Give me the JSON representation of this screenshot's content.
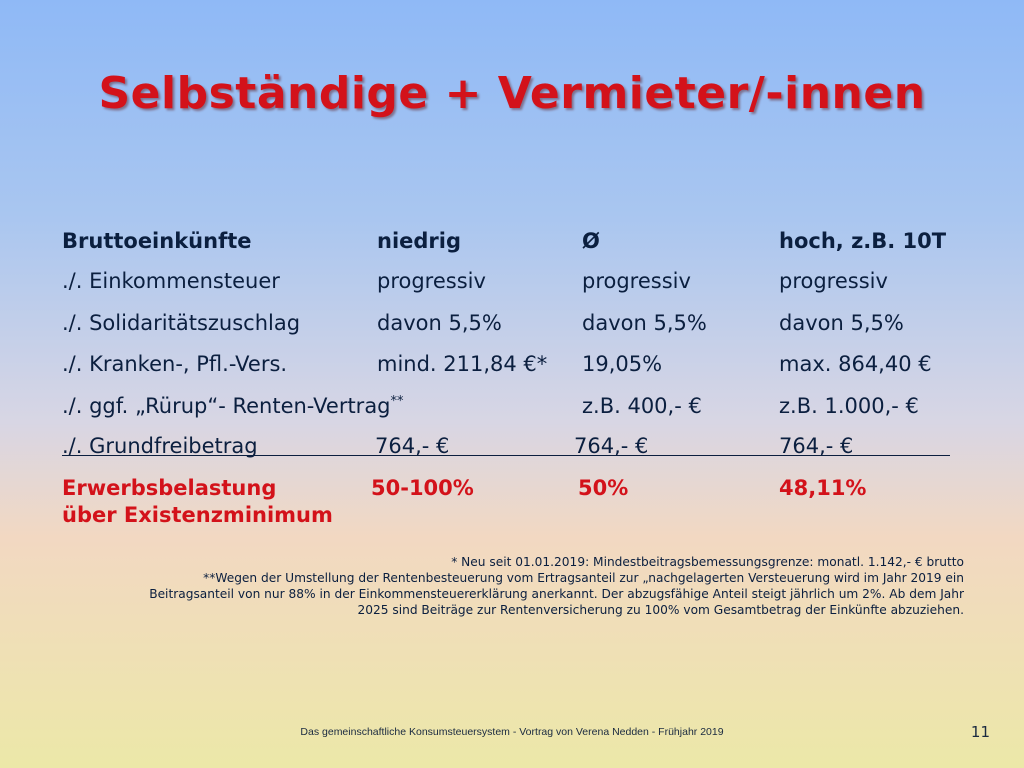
{
  "title": "Selbständige + Vermieter/-innen",
  "header_row": {
    "label": "Bruttoeinkünfte",
    "low": "niedrig",
    "avg": "Ø",
    "high": "hoch, z.B. 10T"
  },
  "rows": [
    {
      "label": "./. Einkommensteuer",
      "low": "progressiv",
      "avg": "progressiv",
      "high": "progressiv"
    },
    {
      "label": "./. Solidaritätszuschlag",
      "low": "davon 5,5%",
      "avg": "davon 5,5%",
      "high": "davon 5,5%"
    },
    {
      "label": "./. Kranken-, Pfl.-Vers.",
      "low": "mind. 211,84 €*",
      "avg": "19,05%",
      "high": "max. 864,40 €"
    },
    {
      "label": "./. ggf. „Rürup“- Renten-Vertrag",
      "label_sup": "**",
      "low": "",
      "avg": "z.B. 400,- €",
      "high": "z.B. 1.000,- €"
    },
    {
      "label": "./. Grundfreibetrag",
      "low": "764,- €",
      "avg": "764,- €",
      "high": "764,- €"
    }
  ],
  "result_row": {
    "label_line1": "Erwerbsbelastung",
    "label_line2": "über Existenzminimum",
    "low": "50-100%",
    "avg": "50%",
    "high": "48,11%"
  },
  "footnotes": {
    "note1": "* Neu seit 01.01.2019: Mindestbeitragsbemessungsgrenze: monatl. 1.142,- € brutto",
    "note2_line1": "**Wegen der Umstellung der Rentenbesteuerung vom Ertragsanteil zur „nachgelagerten Versteuerung wird im Jahr 2019 ein",
    "note2_line2": "Beitragsanteil von nur 88% in der Einkommensteuererklärung anerkannt. Der abzugsfähige Anteil steigt jährlich um 2%. Ab dem Jahr",
    "note2_line3": "2025 sind Beiträge zur Rentenversicherung zu 100% vom Gesamtbetrag der Einkünfte abzuziehen."
  },
  "footer": "Das gemeinschaftliche Konsumsteuersystem - Vortrag von Verena Nedden  -  Frühjahr 2019",
  "page_number": "11",
  "colors": {
    "title": "#d3121a",
    "text": "#0b1f3f",
    "result": "#d3121a"
  }
}
